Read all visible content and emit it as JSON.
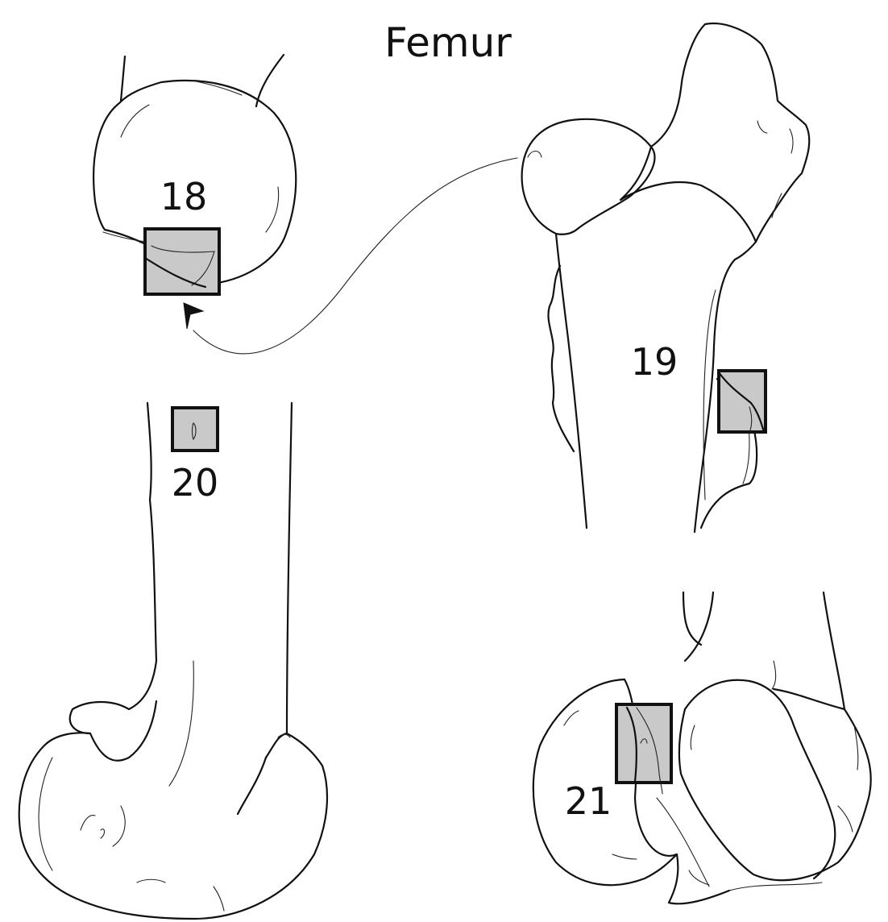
{
  "title": "Femur",
  "sites": [
    {
      "label": "18"
    },
    {
      "label": "19"
    },
    {
      "label": "20"
    },
    {
      "label": "21"
    }
  ]
}
